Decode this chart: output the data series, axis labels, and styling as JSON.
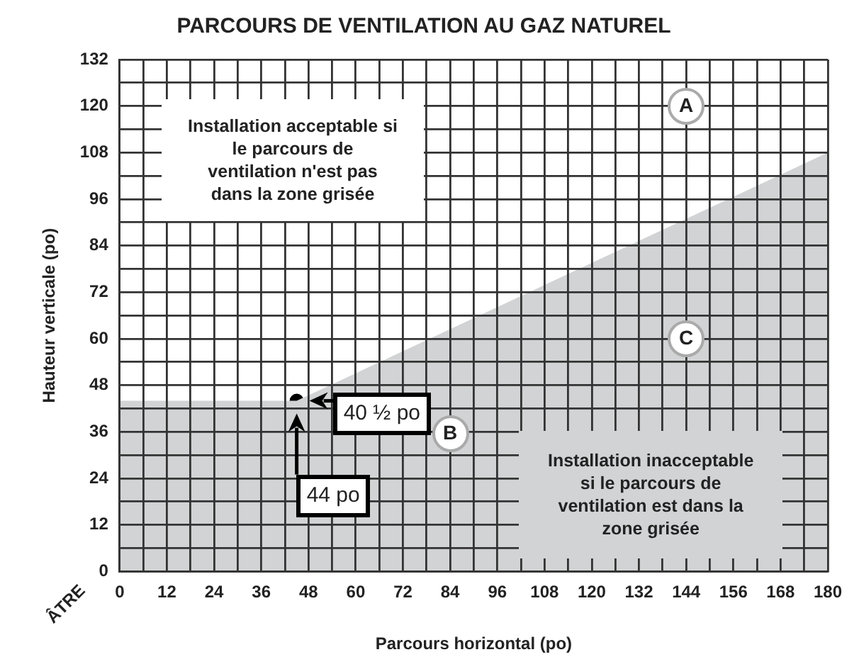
{
  "chart_data": {
    "type": "area",
    "title": "PARCOURS DE VENTILATION AU GAZ NATUREL",
    "xlabel": "Parcours horizontal (po)",
    "ylabel": "Hauteur verticale (po)",
    "xlim": [
      0,
      180
    ],
    "ylim": [
      0,
      132
    ],
    "xticks": [
      0,
      {
        "value": 6,
        "label": null
      },
      12,
      {
        "value": 18,
        "label": null
      },
      24,
      {
        "value": 30,
        "label": null
      },
      36,
      {
        "value": 42,
        "label": null
      },
      48,
      {
        "value": 54,
        "label": null
      },
      60,
      {
        "value": 66,
        "label": null
      },
      72,
      {
        "value": 78,
        "label": null
      },
      84,
      {
        "value": 90,
        "label": null
      },
      96,
      {
        "value": 102,
        "label": null
      },
      108,
      {
        "value": 114,
        "label": null
      },
      120,
      {
        "value": 126,
        "label": null
      },
      132,
      {
        "value": 138,
        "label": null
      },
      144,
      {
        "value": 150,
        "label": null
      },
      156,
      {
        "value": 162,
        "label": null
      },
      168,
      {
        "value": 174,
        "label": null
      },
      180
    ],
    "yticks": [
      0,
      {
        "value": 6,
        "label": null
      },
      12,
      {
        "value": 18,
        "label": null
      },
      24,
      {
        "value": 30,
        "label": null
      },
      36,
      {
        "value": 42,
        "label": null
      },
      48,
      {
        "value": 54,
        "label": null
      },
      60,
      {
        "value": 66,
        "label": null
      },
      72,
      {
        "value": 78,
        "label": null
      },
      84,
      {
        "value": 90,
        "label": null
      },
      96,
      {
        "value": 102,
        "label": null
      },
      108,
      {
        "value": 114,
        "label": null
      },
      120,
      {
        "value": 126,
        "label": null
      },
      132
    ],
    "grid": true,
    "legend": false,
    "series": [
      {
        "type": "area",
        "color": "#d1d3d4",
        "x": [
          0,
          45,
          180
        ],
        "values": [
          44,
          44,
          108
        ]
      },
      {
        "type": "scatter",
        "color": "#000000",
        "marker": "circle",
        "x": [
          45
        ],
        "values": [
          44
        ]
      }
    ],
    "annotations": [
      "Installation acceptable si le parcours de ventilation n'est pas dans la zone grisée",
      "Installation inacceptable si le parcours de ventilation est dans la zone grisée",
      "A",
      "B",
      "C",
      {
        "text": "40 ½ po",
        "x": 45,
        "y": 44
      },
      "44 po",
      "ÂTRE"
    ]
  }
}
